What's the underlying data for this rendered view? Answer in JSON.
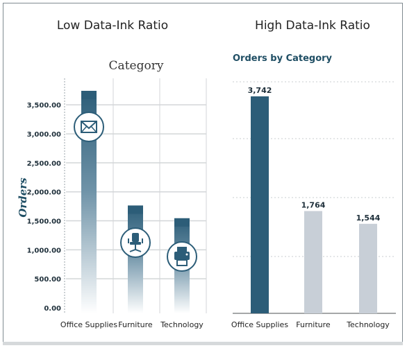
{
  "panels": {
    "left": {
      "heading": "Low Data-Ink Ratio"
    },
    "right": {
      "heading": "High Data-Ink Ratio"
    }
  },
  "chart_data": [
    {
      "type": "bar",
      "subtitle": "Category",
      "ylabel": "Orders",
      "xlabel": "",
      "categories": [
        "Office Supplies",
        "Furniture",
        "Technology"
      ],
      "values": [
        3742,
        1764,
        1544
      ],
      "icons": [
        "envelope-icon",
        "office-chair-icon",
        "printer-icon"
      ],
      "yticks": [
        "3,500.00",
        "3,000.00",
        "2,500.00",
        "2,000.00",
        "1,500.00",
        "1,000.00",
        "500.00",
        "0.00"
      ],
      "ytick_values": [
        3500,
        3000,
        2500,
        2000,
        1500,
        1000,
        500,
        0
      ],
      "ylim": [
        0,
        3800
      ],
      "grid": true,
      "bar_fill": "gradient #2c5d78 to #ffffff",
      "colors": {
        "bar_top": "#2c5d78",
        "bar_bottom": "#ffffff",
        "grid": "#d3d6d8"
      }
    },
    {
      "type": "bar",
      "subtitle": "Orders by Category",
      "xlabel": "",
      "ylabel": "",
      "categories": [
        "Office Supplies",
        "Furniture",
        "Technology"
      ],
      "values": [
        3742,
        1764,
        1544
      ],
      "data_labels": [
        "3,742",
        "1,764",
        "1,544"
      ],
      "ylim": [
        0,
        3800
      ],
      "grid": "dotted",
      "colors": {
        "highlight": "#2c5d78",
        "muted": "#c8cfd7",
        "grid": "#c8cccf"
      }
    }
  ]
}
